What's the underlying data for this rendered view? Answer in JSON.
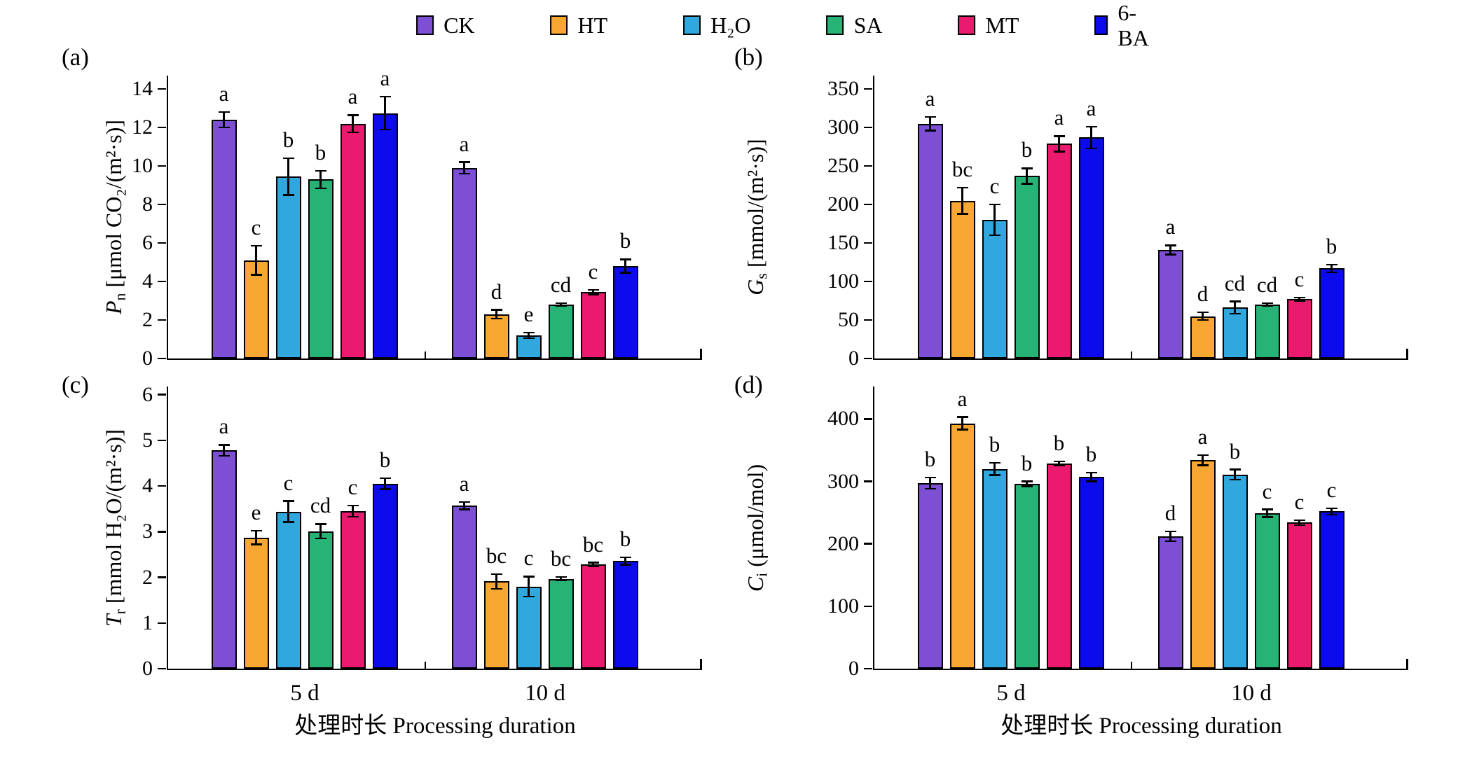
{
  "figure_background": "#ffffff",
  "legend": {
    "position": "top",
    "items": [
      {
        "label": "CK",
        "color": "#7C4FD5"
      },
      {
        "label": "HT",
        "color": "#F8A733"
      },
      {
        "label": "H₂O",
        "color": "#30A8DE"
      },
      {
        "label": "SA",
        "color": "#27B376"
      },
      {
        "label": "MT",
        "color": "#EB1A6F"
      },
      {
        "label": "6-BA",
        "color": "#0B0BEE"
      }
    ]
  },
  "xlabel": "处理时长 Processing duration",
  "x_categories": [
    "5 d",
    "10 d"
  ],
  "chart_data": [
    {
      "type": "bar",
      "id": "a",
      "panel_label": "(a)",
      "ylabel": {
        "sym": "P",
        "sub": "n",
        "rest": " [μmol CO₂/(m²·s)]"
      },
      "ylim": [
        0,
        14
      ],
      "ytick_step": 2,
      "grid": false,
      "categories": [
        "5 d",
        "10 d"
      ],
      "series": [
        {
          "name": "CK",
          "values": [
            12.4,
            9.9
          ],
          "errors": [
            0.4,
            0.3
          ],
          "letters": [
            "a",
            "a"
          ]
        },
        {
          "name": "HT",
          "values": [
            5.1,
            2.3
          ],
          "errors": [
            0.75,
            0.22
          ],
          "letters": [
            "c",
            "d"
          ]
        },
        {
          "name": "H₂O",
          "values": [
            9.45,
            1.2
          ],
          "errors": [
            0.95,
            0.15
          ],
          "letters": [
            "b",
            "e"
          ]
        },
        {
          "name": "SA",
          "values": [
            9.3,
            2.8
          ],
          "errors": [
            0.45,
            0.08
          ],
          "letters": [
            "b",
            "cd"
          ]
        },
        {
          "name": "MT",
          "values": [
            12.2,
            3.45
          ],
          "errors": [
            0.45,
            0.12
          ],
          "letters": [
            "a",
            "c"
          ]
        },
        {
          "name": "6-BA",
          "values": [
            12.75,
            4.8
          ],
          "errors": [
            0.85,
            0.35
          ],
          "letters": [
            "a",
            "b"
          ]
        }
      ]
    },
    {
      "type": "bar",
      "id": "b",
      "panel_label": "(b)",
      "ylabel": {
        "sym": "G",
        "sub": "s",
        "rest": " [mmol/(m²·s)]"
      },
      "ylim": [
        0,
        350
      ],
      "ytick_step": 50,
      "grid": false,
      "categories": [
        "5 d",
        "10 d"
      ],
      "series": [
        {
          "name": "CK",
          "values": [
            305,
            141
          ],
          "errors": [
            9,
            6
          ],
          "letters": [
            "a",
            "a"
          ]
        },
        {
          "name": "HT",
          "values": [
            205,
            55
          ],
          "errors": [
            17,
            5
          ],
          "letters": [
            "bc",
            "d"
          ]
        },
        {
          "name": "H₂O",
          "values": [
            180,
            66
          ],
          "errors": [
            20,
            8
          ],
          "letters": [
            "c",
            "cd"
          ]
        },
        {
          "name": "SA",
          "values": [
            237,
            70
          ],
          "errors": [
            10,
            2
          ],
          "letters": [
            "b",
            "cd"
          ]
        },
        {
          "name": "MT",
          "values": [
            279,
            77
          ],
          "errors": [
            10,
            2
          ],
          "letters": [
            "a",
            "c"
          ]
        },
        {
          "name": "6-BA",
          "values": [
            287,
            117
          ],
          "errors": [
            14,
            5
          ],
          "letters": [
            "a",
            "b"
          ]
        }
      ]
    },
    {
      "type": "bar",
      "id": "c",
      "panel_label": "(c)",
      "ylabel": {
        "sym": "T",
        "sub": "r",
        "rest": " [mmol H₂O/(m²·s)]"
      },
      "ylim": [
        0,
        6
      ],
      "ytick_step": 1,
      "grid": false,
      "categories": [
        "5 d",
        "10 d"
      ],
      "series": [
        {
          "name": "CK",
          "values": [
            4.78,
            3.57
          ],
          "errors": [
            0.12,
            0.08
          ],
          "letters": [
            "a",
            "a"
          ]
        },
        {
          "name": "HT",
          "values": [
            2.87,
            1.91
          ],
          "errors": [
            0.15,
            0.16
          ],
          "letters": [
            "e",
            "bc"
          ]
        },
        {
          "name": "H₂O",
          "values": [
            3.44,
            1.8
          ],
          "errors": [
            0.23,
            0.22
          ],
          "letters": [
            "c",
            "c"
          ]
        },
        {
          "name": "SA",
          "values": [
            3.01,
            1.97
          ],
          "errors": [
            0.16,
            0.04
          ],
          "letters": [
            "cd",
            "bc"
          ]
        },
        {
          "name": "MT",
          "values": [
            3.45,
            2.28
          ],
          "errors": [
            0.12,
            0.04
          ],
          "letters": [
            "c",
            "bc"
          ]
        },
        {
          "name": "6-BA",
          "values": [
            4.05,
            2.36
          ],
          "errors": [
            0.12,
            0.08
          ],
          "letters": [
            "b",
            "b"
          ]
        }
      ]
    },
    {
      "type": "bar",
      "id": "d",
      "panel_label": "(d)",
      "ylabel": {
        "sym": "C",
        "sub": "i",
        "rest": " (μmol/mol)"
      },
      "ylim": [
        0,
        400
      ],
      "ytick_step": 100,
      "grid": false,
      "categories": [
        "5 d",
        "10 d"
      ],
      "series": [
        {
          "name": "CK",
          "values": [
            297,
            212
          ],
          "errors": [
            9,
            8
          ],
          "letters": [
            "b",
            "d"
          ]
        },
        {
          "name": "HT",
          "values": [
            393,
            334
          ],
          "errors": [
            10,
            8
          ],
          "letters": [
            "a",
            "a"
          ]
        },
        {
          "name": "H₂O",
          "values": [
            320,
            311
          ],
          "errors": [
            10,
            8
          ],
          "letters": [
            "b",
            "b"
          ]
        },
        {
          "name": "SA",
          "values": [
            296,
            249
          ],
          "errors": [
            4,
            6
          ],
          "letters": [
            "b",
            "c"
          ]
        },
        {
          "name": "MT",
          "values": [
            329,
            234
          ],
          "errors": [
            3,
            4
          ],
          "letters": [
            "b",
            "c"
          ]
        },
        {
          "name": "6-BA",
          "values": [
            307,
            252
          ],
          "errors": [
            7,
            5
          ],
          "letters": [
            "b",
            "c"
          ]
        }
      ]
    }
  ]
}
